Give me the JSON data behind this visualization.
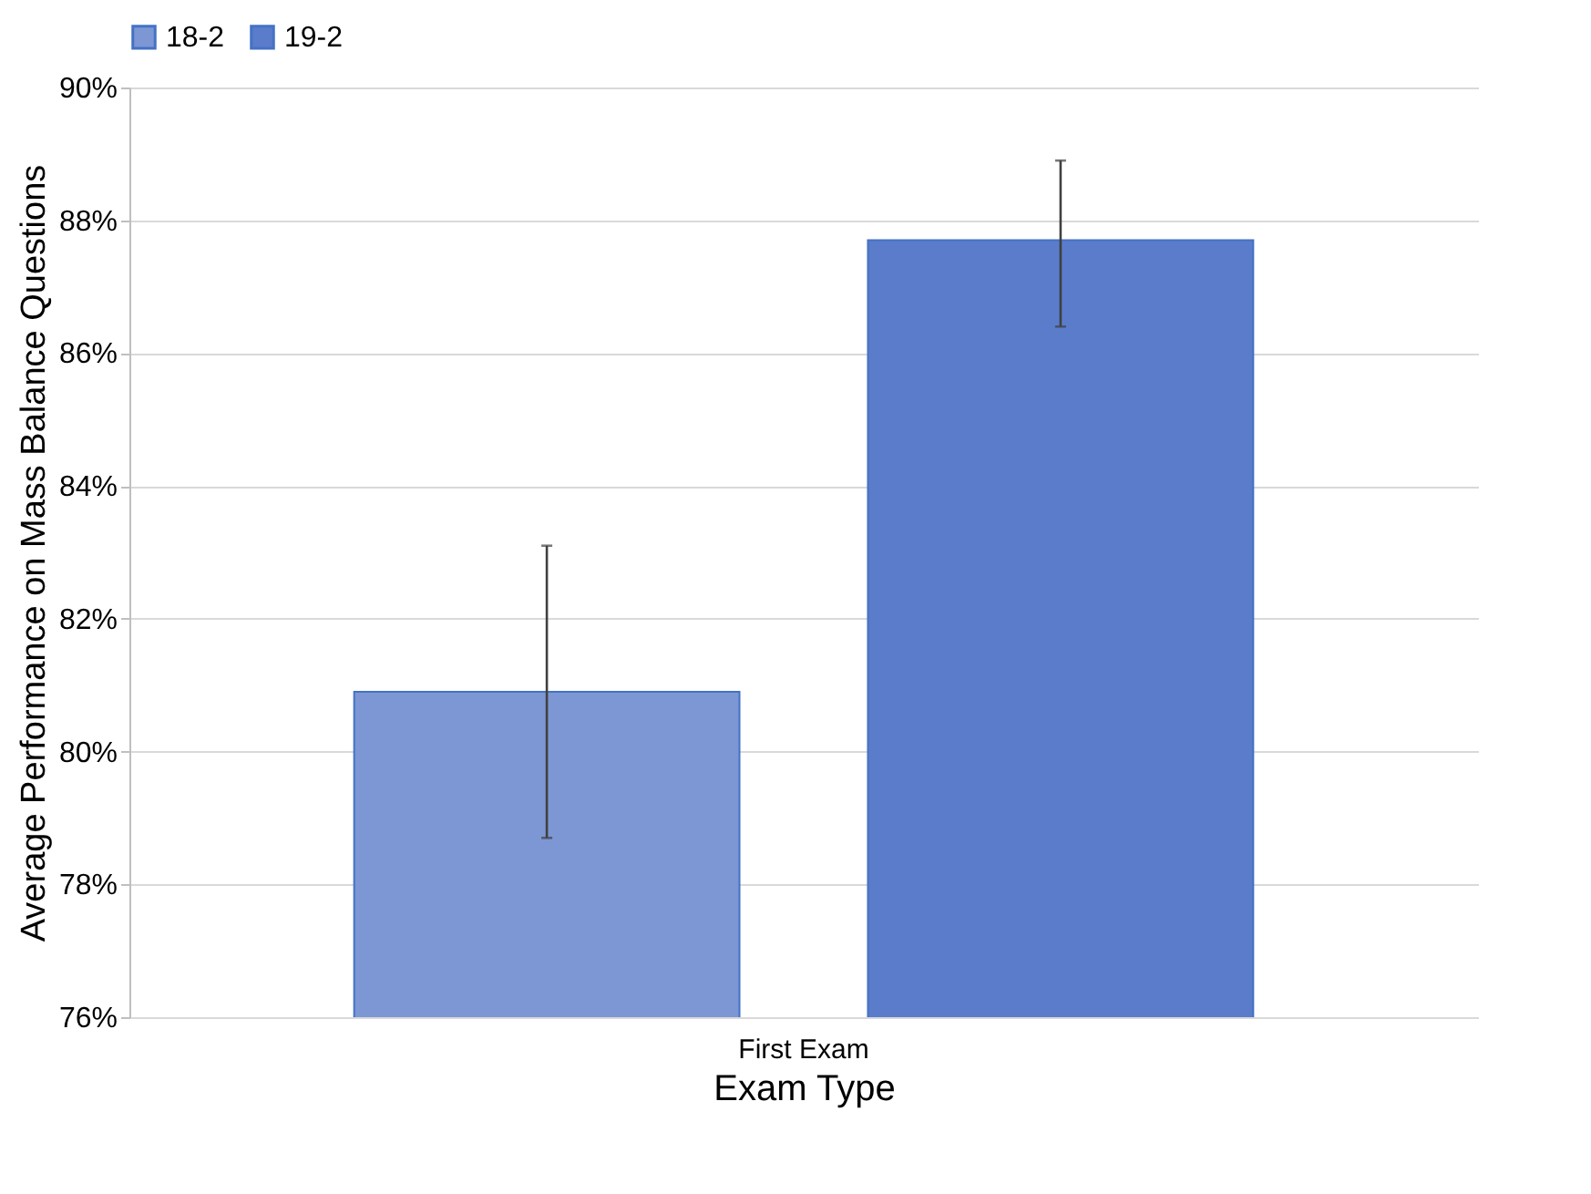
{
  "chart_data": {
    "type": "bar",
    "xlabel": "Exam Type",
    "ylabel": "Average Performance on Mass Balance Questions",
    "categories": [
      "First Exam"
    ],
    "series": [
      {
        "name": "18-2",
        "color": "#7d97d4",
        "values": [
          80.9
        ],
        "errors": [
          [
            78.7,
            83.1
          ]
        ]
      },
      {
        "name": "19-2",
        "color": "#5a7ccb",
        "values": [
          87.7
        ],
        "errors": [
          [
            86.4,
            88.9
          ]
        ]
      }
    ],
    "ylim": [
      76,
      90
    ],
    "yticks": [
      {
        "value": 76,
        "label": "76%"
      },
      {
        "value": 78,
        "label": "78%"
      },
      {
        "value": 80,
        "label": "80%"
      },
      {
        "value": 82,
        "label": "82%"
      },
      {
        "value": 84,
        "label": "84%"
      },
      {
        "value": 86,
        "label": "86%"
      },
      {
        "value": 88,
        "label": "88%"
      },
      {
        "value": 90,
        "label": "90%"
      }
    ],
    "grid": "y",
    "legend": "top"
  }
}
